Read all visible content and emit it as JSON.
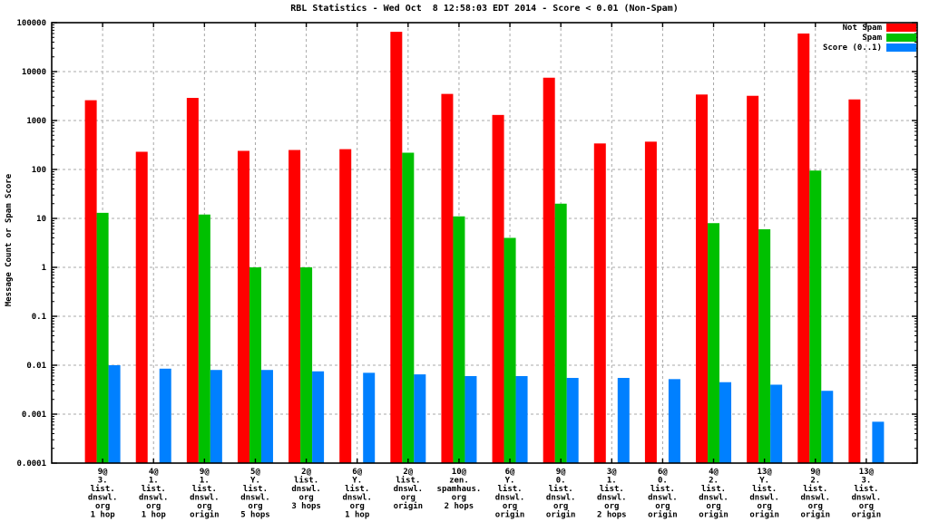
{
  "title": "RBL Statistics - Wed Oct  8 12:58:03 EDT 2014 - Score < 0.01 (Non-Spam)",
  "colors": {
    "not_spam": "#ff0000",
    "spam": "#00c000",
    "score": "#0080ff",
    "grid": "#a8a8a8",
    "border": "#000000",
    "background": "#ffffff"
  },
  "chart_data": {
    "type": "bar",
    "title": "RBL Statistics - Wed Oct  8 12:58:03 EDT 2014 - Score < 0.01 (Non-Spam)",
    "xlabel": "",
    "ylabel": "Message Count or Spam Score",
    "y_scale": "log10",
    "ylim": [
      0.0001,
      100000
    ],
    "ytick_labels": [
      "100000",
      "10000",
      "1000",
      "100",
      "10",
      "1",
      "0.1",
      "0.01",
      "0.001",
      "0.0001"
    ],
    "grid": true,
    "legend_position": "top-right-inside",
    "categories": [
      [
        "9@",
        "3.",
        "list.",
        "dnswl.",
        "org",
        "1 hop"
      ],
      [
        "4@",
        "1.",
        "list.",
        "dnswl.",
        "org",
        "1 hop"
      ],
      [
        "9@",
        "1.",
        "list.",
        "dnswl.",
        "org",
        "origin"
      ],
      [
        "5@",
        "Y.",
        "list.",
        "dnswl.",
        "org",
        "5 hops"
      ],
      [
        "2@",
        "list.",
        "dnswl.",
        "org",
        "3 hops"
      ],
      [
        "6@",
        "Y.",
        "list.",
        "dnswl.",
        "org",
        "1 hop"
      ],
      [
        "2@",
        "list.",
        "dnswl.",
        "org",
        "origin"
      ],
      [
        "10@",
        "zen.",
        "spamhaus.",
        "org",
        "2 hops"
      ],
      [
        "6@",
        "Y.",
        "list.",
        "dnswl.",
        "org",
        "origin"
      ],
      [
        "9@",
        "0.",
        "list.",
        "dnswl.",
        "org",
        "origin"
      ],
      [
        "3@",
        "1.",
        "list.",
        "dnswl.",
        "org",
        "2 hops"
      ],
      [
        "6@",
        "0.",
        "list.",
        "dnswl.",
        "org",
        "origin"
      ],
      [
        "4@",
        "2.",
        "list.",
        "dnswl.",
        "org",
        "origin"
      ],
      [
        "13@",
        "Y.",
        "list.",
        "dnswl.",
        "org",
        "origin"
      ],
      [
        "9@",
        "2.",
        "list.",
        "dnswl.",
        "org",
        "origin"
      ],
      [
        "13@",
        "3.",
        "list.",
        "dnswl.",
        "org",
        "origin"
      ]
    ],
    "series": [
      {
        "name": "Not Spam",
        "color": "#ff0000",
        "values": [
          2600,
          230,
          2900,
          240,
          250,
          260,
          65000,
          3500,
          1300,
          7500,
          340,
          370,
          3400,
          3200,
          60000,
          2700
        ]
      },
      {
        "name": "Spam",
        "color": "#00c000",
        "values": [
          13,
          null,
          12,
          1,
          1,
          null,
          220,
          11,
          4,
          20,
          null,
          null,
          8,
          6,
          95,
          null
        ]
      },
      {
        "name": "Score (0..1)",
        "color": "#0080ff",
        "values": [
          0.01,
          0.0085,
          0.008,
          0.008,
          0.0075,
          0.007,
          0.0065,
          0.006,
          0.006,
          0.0055,
          0.0055,
          0.0052,
          0.0045,
          0.004,
          0.003,
          0.0007
        ]
      }
    ]
  }
}
